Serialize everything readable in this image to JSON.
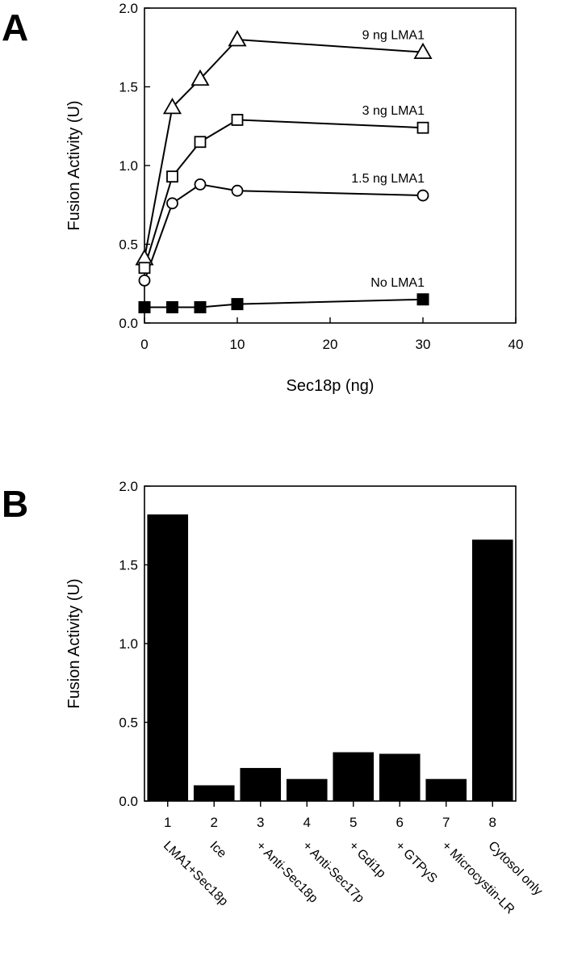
{
  "chart_data": [
    {
      "panel": "A",
      "type": "line",
      "xlabel": "Sec18p (ng)",
      "ylabel": "Fusion Activity (U)",
      "xlim": [
        0,
        40
      ],
      "ylim": [
        0,
        2.0
      ],
      "xticks": [
        "0",
        "10",
        "20",
        "30",
        "40"
      ],
      "yticks": [
        "0.0",
        "0.5",
        "1.0",
        "1.5",
        "2.0"
      ],
      "grid": false,
      "series": [
        {
          "name": "9 ng LMA1",
          "marker": "triangle-open",
          "x": [
            0,
            3,
            6,
            10,
            30
          ],
          "y": [
            0.41,
            1.37,
            1.55,
            1.8,
            1.72
          ]
        },
        {
          "name": "3 ng LMA1",
          "marker": "square-open",
          "x": [
            0,
            3,
            6,
            10,
            30
          ],
          "y": [
            0.35,
            0.93,
            1.15,
            1.29,
            1.24
          ]
        },
        {
          "name": "1.5 ng LMA1",
          "marker": "circle-open",
          "x": [
            0,
            3,
            6,
            10,
            30
          ],
          "y": [
            0.27,
            0.76,
            0.88,
            0.84,
            0.81
          ]
        },
        {
          "name": "No LMA1",
          "marker": "square-filled",
          "x": [
            0,
            3,
            6,
            10,
            30
          ],
          "y": [
            0.1,
            0.1,
            0.1,
            0.12,
            0.15
          ]
        }
      ]
    },
    {
      "panel": "B",
      "type": "bar",
      "ylabel": "Fusion Activity (U)",
      "ylim": [
        0,
        2.0
      ],
      "yticks": [
        "0.0",
        "0.5",
        "1.0",
        "1.5",
        "2.0"
      ],
      "grid": false,
      "numbers": [
        "1",
        "2",
        "3",
        "4",
        "5",
        "6",
        "7",
        "8"
      ],
      "categories": [
        "LMA1+Sec18p",
        "Ice",
        "+ Anti-Sec18p",
        "+ Anti-Sec17p",
        "+ Gdi1p",
        "+ GTPγS",
        "+ Microcystin-LR",
        "Cytosol only"
      ],
      "values": [
        1.82,
        0.1,
        0.21,
        0.14,
        0.31,
        0.3,
        0.14,
        1.66
      ],
      "bar_color": "#000000"
    }
  ]
}
